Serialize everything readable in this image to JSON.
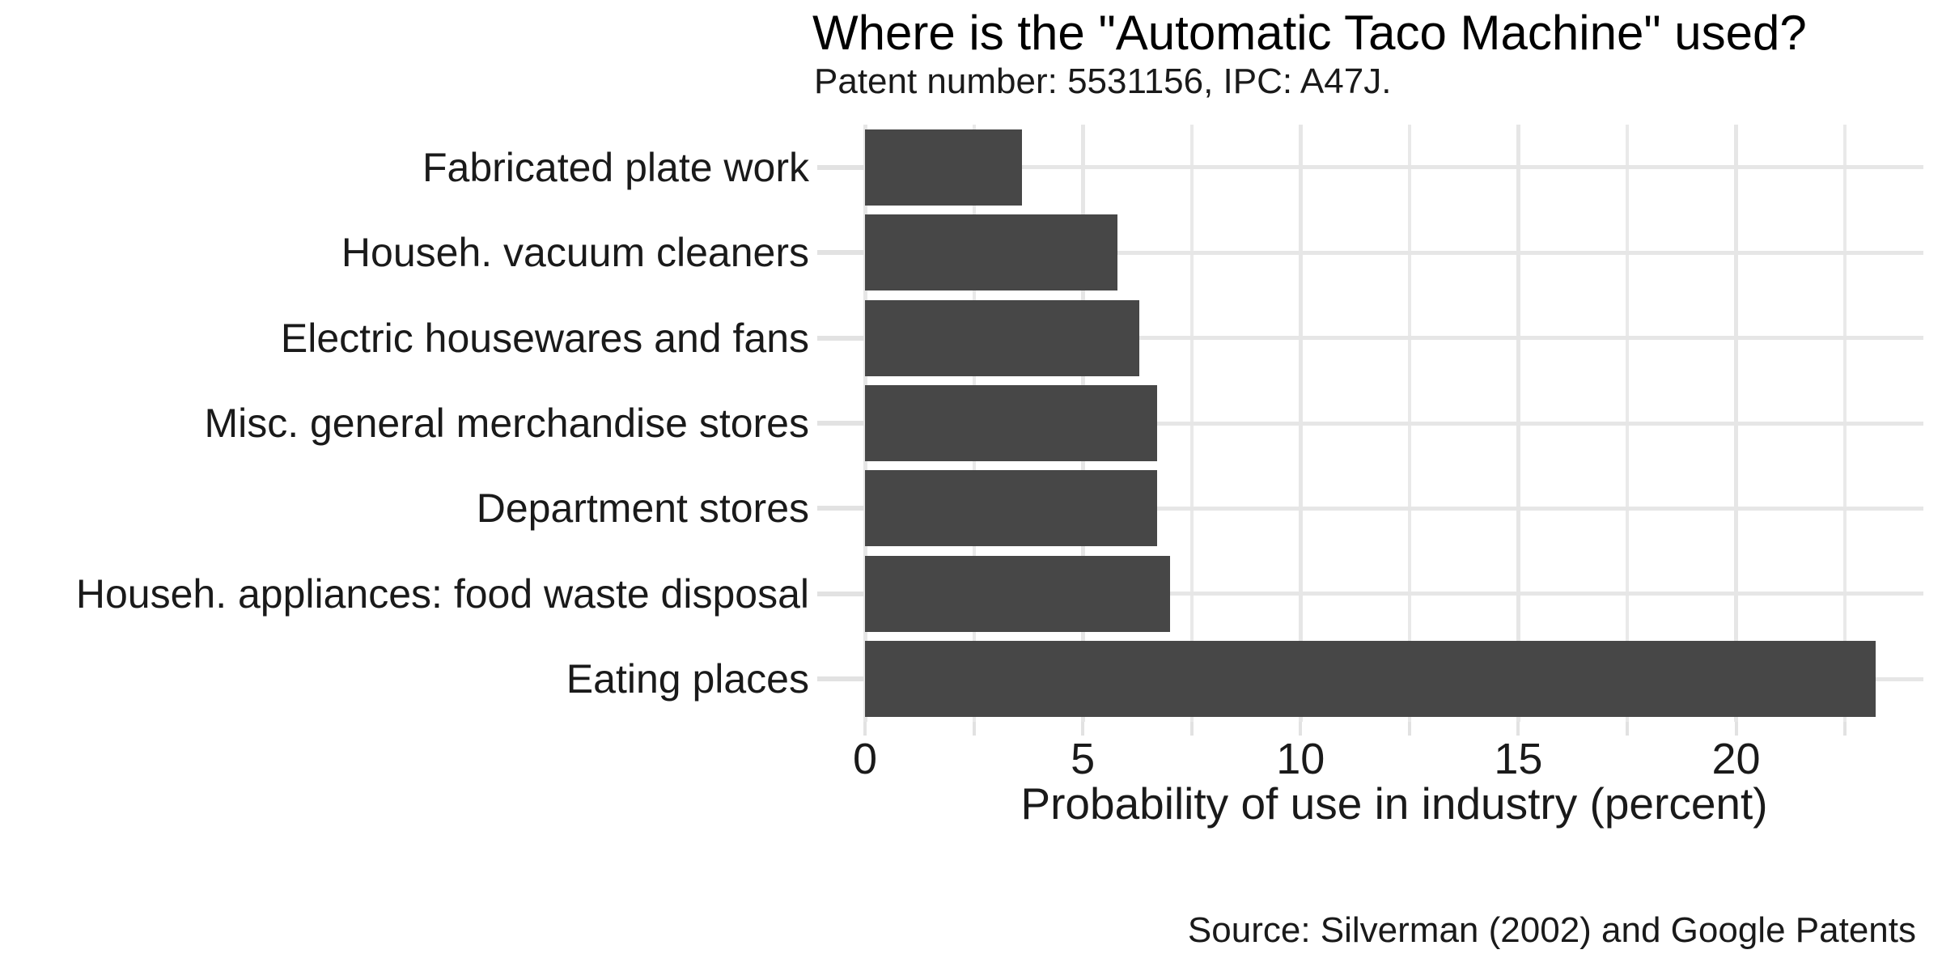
{
  "chart_data": {
    "type": "bar",
    "orientation": "horizontal",
    "title": "Where is the \"Automatic Taco Machine\" used?",
    "subtitle": "Patent number: 5531156, IPC: A47J.",
    "caption": "Source: Silverman (2002) and Google Patents",
    "xlabel": "Probability of use in industry (percent)",
    "ylabel": "",
    "categories": [
      "Fabricated plate work",
      "Househ. vacuum cleaners",
      "Electric housewares and fans",
      "Misc. general merchandise stores",
      "Department stores",
      "Househ. appliances: food waste disposal",
      "Eating places"
    ],
    "values": [
      3.6,
      5.8,
      6.3,
      6.7,
      6.7,
      7.0,
      23.2
    ],
    "xlim": [
      0,
      24.3
    ],
    "x_major_ticks": [
      0,
      5,
      10,
      15,
      20
    ],
    "x_major_tick_labels": [
      "0",
      "5",
      "10",
      "15",
      "20"
    ],
    "x_minor_ticks": [
      2.5,
      7.5,
      12.5,
      17.5,
      22.5
    ],
    "grid": true,
    "legend": false,
    "bar_color": "#474747",
    "grid_color": "#e6e6e6",
    "tick_color": "#e2e2e2",
    "text_color": "#1a1a1a"
  }
}
